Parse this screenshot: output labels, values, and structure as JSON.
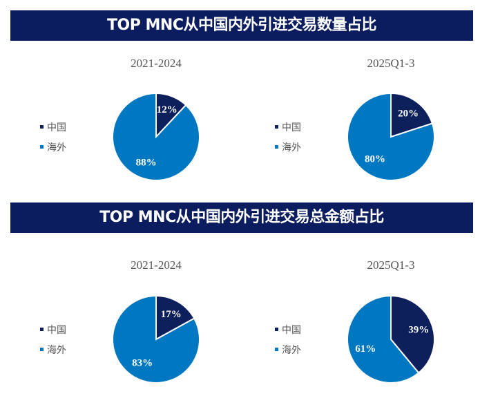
{
  "colors": {
    "china": "#0d205c",
    "overseas": "#0078c1",
    "header": "#0b1d5e"
  },
  "legend": [
    "中国",
    "海外"
  ],
  "chart_data": [
    {
      "type": "pie",
      "section_title": "TOP MNC从中国内外引进交易数量占比",
      "title": "2021-2024",
      "categories": [
        "中国",
        "海外"
      ],
      "values": [
        12,
        88
      ],
      "labels": [
        "12%",
        "88%"
      ]
    },
    {
      "type": "pie",
      "section_title": "TOP MNC从中国内外引进交易数量占比",
      "title": "2025Q1-3",
      "categories": [
        "中国",
        "海外"
      ],
      "values": [
        20,
        80
      ],
      "labels": [
        "20%",
        "80%"
      ]
    },
    {
      "type": "pie",
      "section_title": "TOP MNC从中国内外引进交易总金额占比",
      "title": "2021-2024",
      "categories": [
        "中国",
        "海外"
      ],
      "values": [
        17,
        83
      ],
      "labels": [
        "17%",
        "83%"
      ]
    },
    {
      "type": "pie",
      "section_title": "TOP MNC从中国内外引进交易总金额占比",
      "title": "2025Q1-3",
      "categories": [
        "中国",
        "海外"
      ],
      "values": [
        39,
        61
      ],
      "labels": [
        "39%",
        "61%"
      ]
    }
  ],
  "headers": [
    "TOP MNC从中国内外引进交易数量占比",
    "TOP MNC从中国内外引进交易总金额占比"
  ]
}
